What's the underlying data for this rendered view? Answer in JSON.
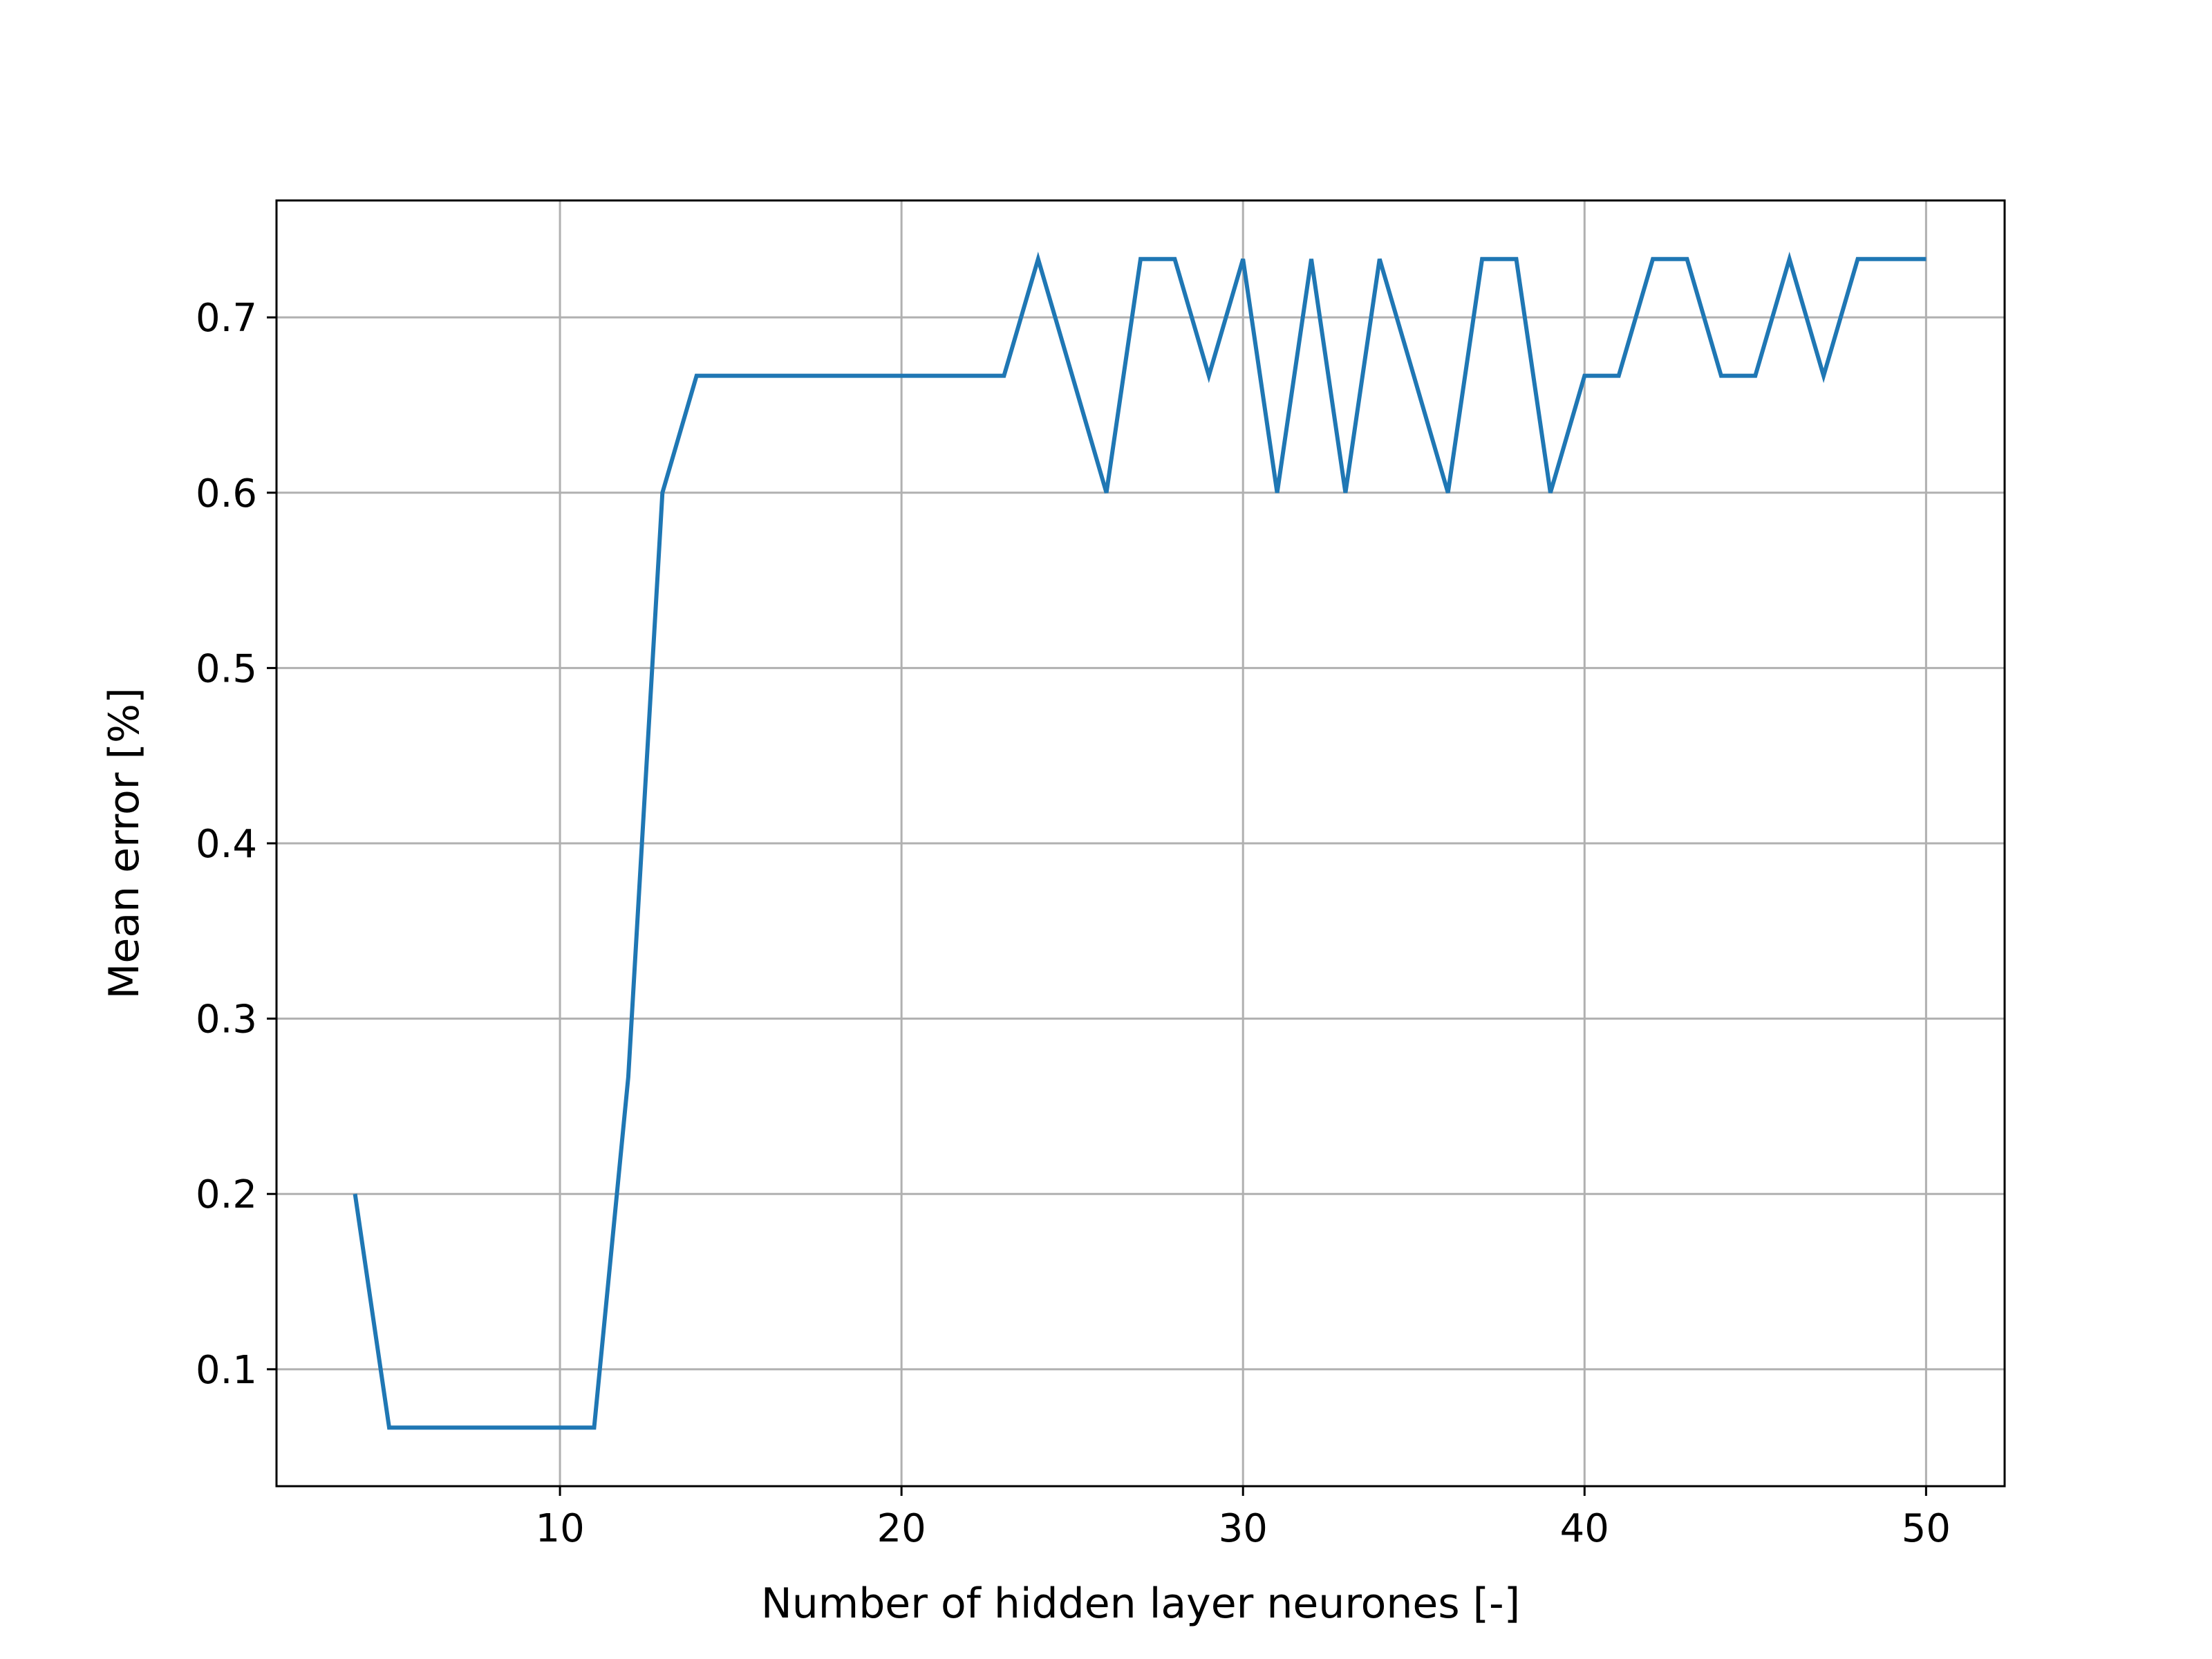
{
  "chart_data": {
    "type": "line",
    "xlabel": "Number of hidden layer neurones [-]",
    "ylabel": "Mean error [%]",
    "xlim": [
      1.7,
      52.3
    ],
    "ylim": [
      0.0333,
      0.7667
    ],
    "xticks": [
      10,
      20,
      30,
      40,
      50
    ],
    "yticks": [
      0.1,
      0.2,
      0.3,
      0.4,
      0.5,
      0.6,
      0.7
    ],
    "grid": true,
    "colors": {
      "series": "#1f77b4",
      "grid": "#b0b0b0",
      "axes": "#000000"
    },
    "series": [
      {
        "x": [
          4,
          5,
          6,
          7,
          8,
          9,
          10,
          11,
          12,
          13,
          14,
          15,
          16,
          17,
          18,
          19,
          20,
          21,
          22,
          23,
          24,
          25,
          26,
          27,
          28,
          29,
          30,
          31,
          32,
          33,
          34,
          35,
          36,
          37,
          38,
          39,
          40,
          41,
          42,
          43,
          44,
          45,
          46,
          47,
          48,
          49,
          50
        ],
        "values": [
          0.2,
          0.0667,
          0.0667,
          0.0667,
          0.0667,
          0.0667,
          0.0667,
          0.0667,
          0.2667,
          0.6,
          0.6667,
          0.6667,
          0.6667,
          0.6667,
          0.6667,
          0.6667,
          0.6667,
          0.6667,
          0.6667,
          0.6667,
          0.7333,
          0.6667,
          0.6,
          0.7333,
          0.7333,
          0.6667,
          0.7333,
          0.6,
          0.7333,
          0.6,
          0.7333,
          0.6667,
          0.6,
          0.7333,
          0.7333,
          0.6,
          0.6667,
          0.6667,
          0.7333,
          0.7333,
          0.6667,
          0.6667,
          0.7333,
          0.6667,
          0.7333,
          0.7333,
          0.7333
        ]
      }
    ]
  }
}
